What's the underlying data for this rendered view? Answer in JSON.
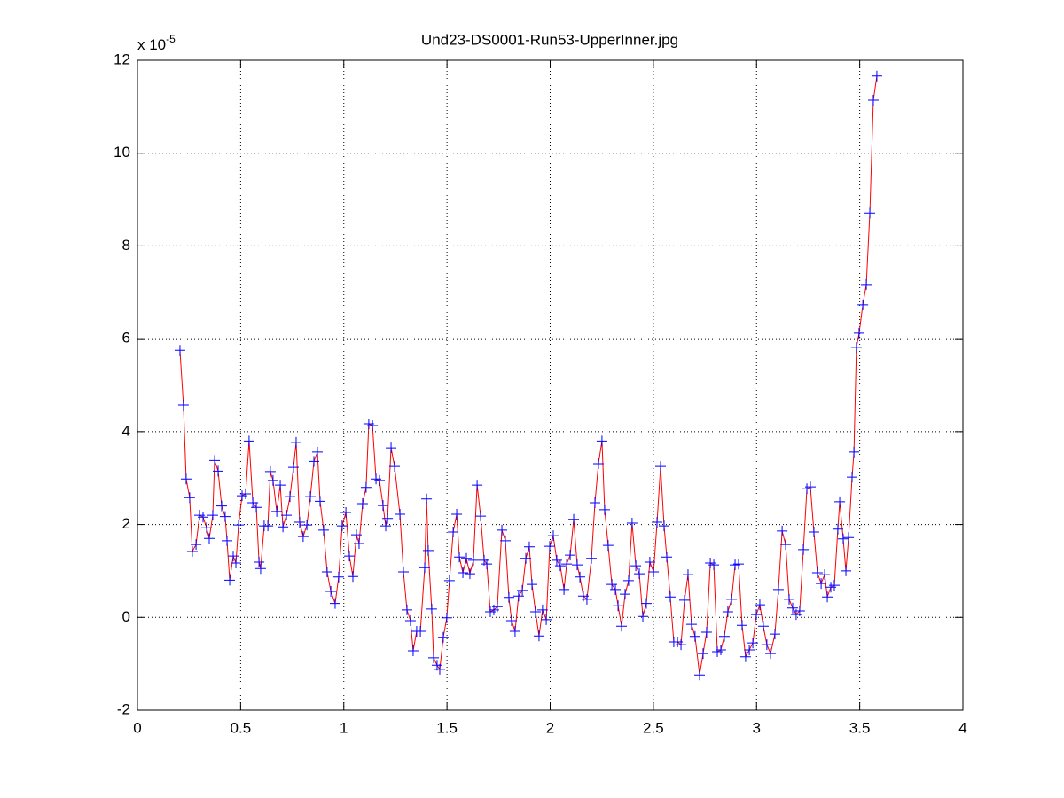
{
  "chart_data": {
    "type": "line",
    "title": "Und23-DS0001-Run53-UpperInner.jpg",
    "y_multiplier": {
      "base": "x 10",
      "exponent": "-5"
    },
    "xlim": [
      0,
      4
    ],
    "xticks": [
      0,
      0.5,
      1,
      1.5,
      2,
      2.5,
      3,
      3.5,
      4
    ],
    "ylim": [
      -2,
      12
    ],
    "yticks": [
      -2,
      0,
      2,
      4,
      6,
      8,
      10,
      12
    ],
    "grid": true,
    "x": [
      0.206,
      0.223,
      0.236,
      0.253,
      0.266,
      0.284,
      0.301,
      0.318,
      0.335,
      0.348,
      0.365,
      0.374,
      0.391,
      0.408,
      0.425,
      0.434,
      0.447,
      0.464,
      0.477,
      0.49,
      0.507,
      0.524,
      0.541,
      0.559,
      0.576,
      0.589,
      0.597,
      0.614,
      0.632,
      0.644,
      0.657,
      0.675,
      0.692,
      0.705,
      0.722,
      0.739,
      0.756,
      0.769,
      0.786,
      0.803,
      0.821,
      0.838,
      0.855,
      0.872,
      0.885,
      0.902,
      0.919,
      0.937,
      0.958,
      0.975,
      0.992,
      1.01,
      1.027,
      1.044,
      1.061,
      1.074,
      1.091,
      1.108,
      1.121,
      1.139,
      1.156,
      1.173,
      1.19,
      1.203,
      1.212,
      1.229,
      1.246,
      1.272,
      1.289,
      1.306,
      1.323,
      1.336,
      1.353,
      1.371,
      1.392,
      1.401,
      1.409,
      1.426,
      1.435,
      1.452,
      1.465,
      1.482,
      1.499,
      1.512,
      1.53,
      1.547,
      1.56,
      1.577,
      1.594,
      1.611,
      1.628,
      1.646,
      1.663,
      1.68,
      1.693,
      1.71,
      1.727,
      1.744,
      1.766,
      1.783,
      1.8,
      1.813,
      1.83,
      1.847,
      1.865,
      1.882,
      1.899,
      1.912,
      1.929,
      1.946,
      1.963,
      1.981,
      1.998,
      2.015,
      2.032,
      2.049,
      2.067,
      2.08,
      2.097,
      2.114,
      2.131,
      2.144,
      2.161,
      2.178,
      2.2,
      2.217,
      2.234,
      2.251,
      2.264,
      2.281,
      2.299,
      2.316,
      2.329,
      2.346,
      2.363,
      2.38,
      2.397,
      2.415,
      2.432,
      2.449,
      2.466,
      2.483,
      2.501,
      2.518,
      2.535,
      2.552,
      2.565,
      2.582,
      2.599,
      2.617,
      2.634,
      2.651,
      2.668,
      2.685,
      2.702,
      2.724,
      2.741,
      2.758,
      2.776,
      2.793,
      2.81,
      2.827,
      2.844,
      2.861,
      2.879,
      2.896,
      2.913,
      2.93,
      2.947,
      2.965,
      2.982,
      2.999,
      3.016,
      3.033,
      3.05,
      3.068,
      3.089,
      3.106,
      3.124,
      3.141,
      3.158,
      3.175,
      3.192,
      3.209,
      3.227,
      3.244,
      3.261,
      3.278,
      3.295,
      3.313,
      3.33,
      3.343,
      3.36,
      3.377,
      3.394,
      3.403,
      3.42,
      3.433,
      3.446,
      3.463,
      3.472,
      3.484,
      3.497,
      3.515,
      3.532,
      3.549,
      3.566,
      3.583
    ],
    "series": [
      {
        "color": "#ff0000",
        "marker_color": "#0000ff",
        "values": [
          5.75,
          4.57,
          2.98,
          2.58,
          1.42,
          1.57,
          2.2,
          2.16,
          1.93,
          1.7,
          2.2,
          3.38,
          3.15,
          2.4,
          2.17,
          1.65,
          0.8,
          1.32,
          1.17,
          1.99,
          2.62,
          2.66,
          3.8,
          2.47,
          2.37,
          1.19,
          1.05,
          1.97,
          1.97,
          3.14,
          2.95,
          2.28,
          2.85,
          1.95,
          2.2,
          2.6,
          3.23,
          3.77,
          2.05,
          1.74,
          1.99,
          2.6,
          3.36,
          3.56,
          2.5,
          1.88,
          0.98,
          0.56,
          0.3,
          0.87,
          1.97,
          2.26,
          1.32,
          0.88,
          1.78,
          1.59,
          2.45,
          2.8,
          4.17,
          4.13,
          2.98,
          2.95,
          2.41,
          1.97,
          2.13,
          3.65,
          3.25,
          2.22,
          0.98,
          0.16,
          -0.07,
          -0.72,
          -0.3,
          -0.3,
          1.07,
          2.55,
          1.44,
          0.18,
          -0.87,
          -1.03,
          -1.12,
          -0.43,
          -0.01,
          0.79,
          1.84,
          2.22,
          1.3,
          0.96,
          1.27,
          0.94,
          1.23,
          2.85,
          2.18,
          1.23,
          1.15,
          0.12,
          0.16,
          0.23,
          1.88,
          1.65,
          0.43,
          -0.07,
          -0.3,
          0.46,
          0.58,
          1.27,
          1.52,
          0.71,
          0.12,
          -0.4,
          0.16,
          -0.05,
          1.53,
          1.76,
          1.23,
          1.11,
          0.6,
          1.15,
          1.34,
          2.11,
          1.13,
          0.87,
          0.46,
          0.39,
          1.27,
          2.47,
          3.31,
          3.8,
          2.32,
          1.55,
          0.71,
          0.6,
          0.25,
          -0.19,
          0.5,
          0.79,
          2.03,
          1.11,
          0.94,
          0.02,
          0.3,
          1.19,
          0.98,
          2.05,
          3.25,
          1.97,
          1.3,
          0.44,
          -0.53,
          -0.53,
          -0.59,
          0.37,
          0.92,
          -0.15,
          -0.41,
          -1.24,
          -0.78,
          -0.32,
          1.17,
          1.13,
          -0.74,
          -0.7,
          -0.41,
          0.12,
          0.39,
          1.13,
          1.15,
          -0.17,
          -0.85,
          -0.7,
          -0.55,
          0.06,
          0.27,
          -0.19,
          -0.59,
          -0.78,
          -0.36,
          0.6,
          1.86,
          1.57,
          0.39,
          0.2,
          0.06,
          0.14,
          1.46,
          2.77,
          2.81,
          1.84,
          0.96,
          0.73,
          0.92,
          0.44,
          0.65,
          0.69,
          1.9,
          2.49,
          1.69,
          1.0,
          1.72,
          3.02,
          3.56,
          5.81,
          6.12,
          6.73,
          7.17,
          8.71,
          11.14,
          11.66
        ]
      }
    ]
  }
}
